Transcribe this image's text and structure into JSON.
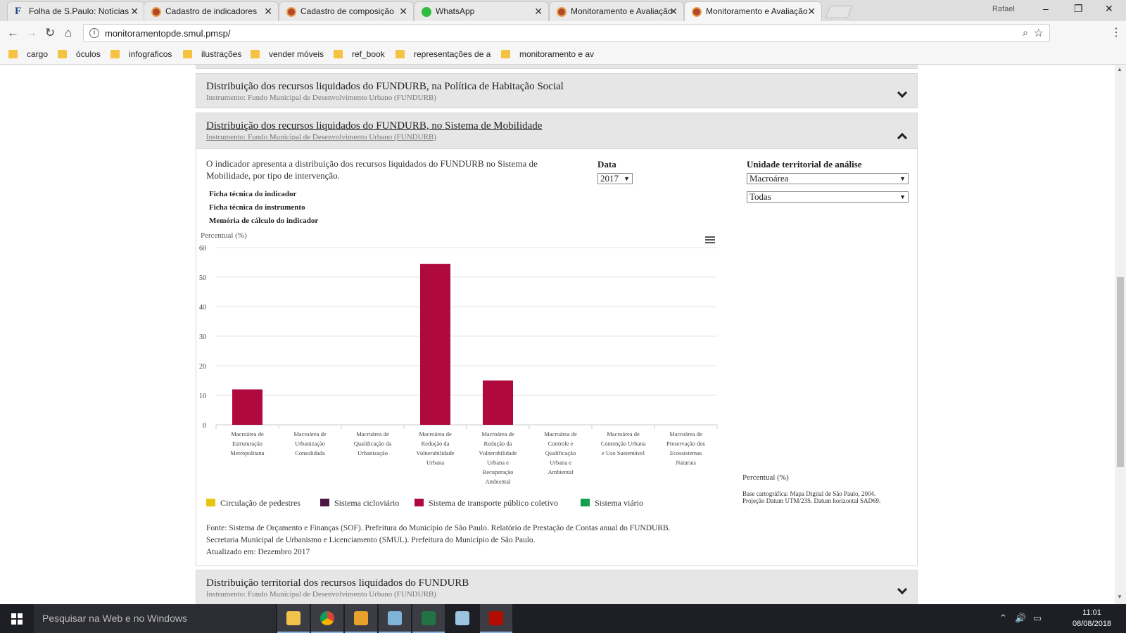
{
  "tabs": [
    {
      "label": "Folha de S.Paulo: Notícias",
      "icon": "folha-f-icon",
      "active": false
    },
    {
      "label": "Cadastro de indicadores",
      "icon": "sp-seal-icon",
      "active": false
    },
    {
      "label": "Cadastro de composição",
      "icon": "sp-seal-icon",
      "active": false
    },
    {
      "label": "WhatsApp",
      "icon": "whatsapp-icon",
      "active": false
    },
    {
      "label": "Monitoramento e Avaliação",
      "icon": "sp-seal-icon",
      "active": false
    },
    {
      "label": "Monitoramento e Avaliação",
      "icon": "sp-seal-icon",
      "active": true
    }
  ],
  "window": {
    "user": "Rafael",
    "close_glyph": "✕",
    "tab_close_glyph": "✕"
  },
  "address": {
    "url": "monitoramentopde.smul.pmsp/"
  },
  "bookmarks": [
    "cargo",
    "óculos",
    "infograficos",
    "ilustrações",
    "vender móveis",
    "ref_book",
    "representações de a",
    "monitoramento e av"
  ],
  "sections": {
    "habitacao": {
      "title": "Distribuição dos recursos liquidados do FUNDURB, na Política de Habitação Social",
      "subtitle": "Instrumento: Fundo Municipal de Desenvolvimento Urbano (FUNDURB)"
    },
    "mobilidade": {
      "title": "Distribuição dos recursos liquidados do FUNDURB, no Sistema de Mobilidade",
      "subtitle": "Instrumento: Fundo Municipal de Desenvolvimento Urbano (FUNDURB)",
      "description": "O indicador apresenta a distribuição dos recursos liquidados do FUNDURB no Sistema de Mobilidade, por tipo de intervenção.",
      "links": [
        "Ficha técnica do indicador",
        "Ficha técnica do instrumento",
        "Memória de cálculo do indicador"
      ],
      "date_label": "Data",
      "date_value": "2017",
      "unit_label": "Unidade territorial de análise",
      "unit_value": "Macroárea",
      "unit_filter": "Todas",
      "map_unit": "Percentual (%)",
      "map_note_1": "Base cartográfica: Mapa Digital de São Paulo, 2004.",
      "map_note_2": "Projeção Datum UTM/23S. Datum horizontal SAD69.",
      "source_1": "Fonte: Sistema de Orçamento e Finanças (SOF). Prefeitura do Município de São Paulo. Relatório de Prestação de Contas anual do FUNDURB.",
      "source_2": "Secretaria Municipal de Urbanismo e Licenciamento (SMUL). Prefeitura do Município de São Paulo.",
      "source_3": "Atualizado em: Dezembro 2017"
    },
    "territorial": {
      "title": "Distribuição territorial dos recursos liquidados do FUNDURB",
      "subtitle": "Instrumento: Fundo Municipal de Desenvolvimento Urbano (FUNDURB)"
    }
  },
  "chart_data": {
    "type": "bar",
    "title": "",
    "ylabel": "Percentual (%)",
    "xlabel": "",
    "ylim": [
      0,
      60
    ],
    "yticks": [
      0,
      10,
      20,
      30,
      40,
      50,
      60
    ],
    "grid": true,
    "legend_position": "bottom-left",
    "categories": [
      [
        "Macroárea de",
        "Estruturação",
        "Metropolitana"
      ],
      [
        "Macroárea de",
        "Urbanização",
        "Consolidada"
      ],
      [
        "Macroárea de",
        "Qualificação da",
        "Urbanização"
      ],
      [
        "Macroárea de",
        "Redução da",
        "Vulnerabilidade",
        "Urbana"
      ],
      [
        "Macroárea de",
        "Redução da",
        "Vulnerabilidade",
        "Urbana e",
        "Recuperação",
        "Ambiental"
      ],
      [
        "Macroárea de",
        "Controle e",
        "Qualificação",
        "Urbana e",
        "Ambiental"
      ],
      [
        "Macroárea de",
        "Contenção Urbana",
        "e Uso Sustentável"
      ],
      [
        "Macroárea de",
        "Preservação dos",
        "Ecossistemas",
        "Naturais"
      ]
    ],
    "series": [
      {
        "name": "Circulação de pedestres",
        "color": "#e8c510",
        "values": [
          0,
          0,
          0,
          0,
          0,
          0,
          0,
          0
        ]
      },
      {
        "name": "Sistema cicloviário",
        "color": "#4a1842",
        "values": [
          0,
          0,
          0,
          0,
          0,
          0,
          0,
          0
        ]
      },
      {
        "name": "Sistema de transporte público coletivo",
        "color": "#b0093d",
        "values": [
          12,
          0,
          0,
          54.5,
          15,
          0,
          0,
          0
        ]
      },
      {
        "name": "Sistema viário",
        "color": "#14a04a",
        "values": [
          0,
          0,
          0,
          0,
          0,
          0,
          0,
          0
        ]
      }
    ]
  },
  "taskbar": {
    "search_placeholder": "Pesquisar na Web e no Windows",
    "time": "11:01",
    "date": "08/08/2018"
  }
}
